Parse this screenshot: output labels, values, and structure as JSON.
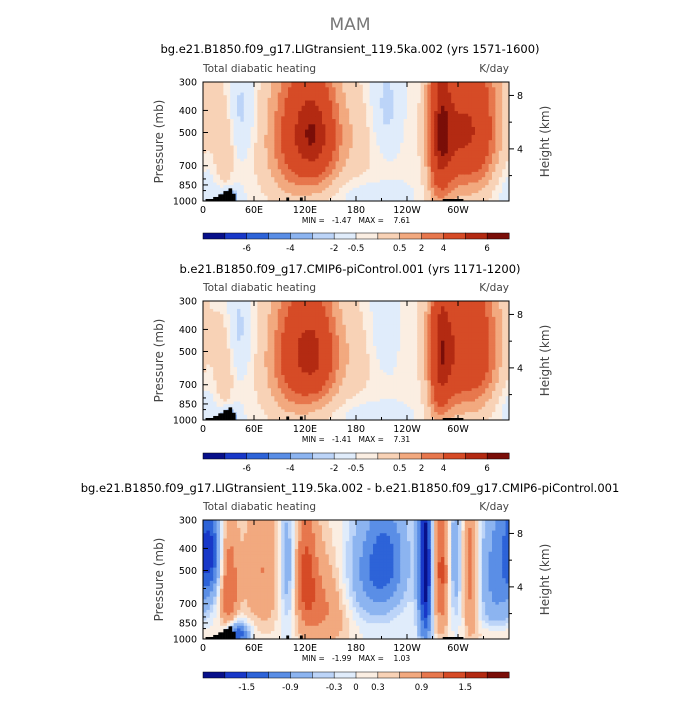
{
  "page": {
    "season": "MAM"
  },
  "colors": {
    "scale": [
      "#08108a",
      "#1838c8",
      "#2d63d8",
      "#5a8ee6",
      "#8cb4f0",
      "#bcd4f8",
      "#e0ecfb",
      "#fbeee2",
      "#f8d2b6",
      "#f2a97f",
      "#e7774d",
      "#d64b26",
      "#b32a12",
      "#7a0e08"
    ],
    "terrain": "#000000",
    "frame": "#000000"
  },
  "chart_data": [
    {
      "type": "heatmap",
      "title": "bg.e21.B1850.f09_g17.LIGtransient_119.5ka.002 (yrs 1571-1600)",
      "left_string": "Total diabatic heating",
      "units": "K/day",
      "ylabel": "Pressure (mb)",
      "y2label": "Height (km)",
      "x_ticks": [
        "0",
        "60E",
        "120E",
        "180",
        "120W",
        "60W"
      ],
      "x_tick_values": [
        0,
        60,
        120,
        180,
        240,
        300
      ],
      "xlim": [
        0,
        360
      ],
      "y_ticks": [
        "300",
        "400",
        "500",
        "700",
        "850",
        "1000"
      ],
      "y_tick_values": [
        300,
        400,
        500,
        700,
        850,
        1000
      ],
      "ylim": [
        1000,
        300
      ],
      "y2_ticks": [
        "8",
        "4"
      ],
      "y2_tick_values": [
        8,
        4
      ],
      "minmax": "MIN =   -1.47   MAX =    7.61",
      "min": -1.47,
      "max": 7.61,
      "colorbar_labels": [
        "-6",
        "-4",
        "-2",
        "-0.5",
        "0.5",
        "2",
        "4",
        "6"
      ],
      "features": [
        {
          "lon": 5,
          "p": 420,
          "sx": 12,
          "sy": 170,
          "a": 0.5
        },
        {
          "lon": 25,
          "p": 600,
          "sx": 8,
          "sy": 200,
          "a": 1.5
        },
        {
          "lon": 30,
          "p": 960,
          "sx": 8,
          "sy": 60,
          "a": -2.0
        },
        {
          "lon": 45,
          "p": 400,
          "sx": 12,
          "sy": 150,
          "a": -1.0
        },
        {
          "lon": 95,
          "p": 550,
          "sx": 22,
          "sy": 280,
          "a": 2.0
        },
        {
          "lon": 120,
          "p": 500,
          "sx": 20,
          "sy": 260,
          "a": 4.0
        },
        {
          "lon": 140,
          "p": 520,
          "sx": 16,
          "sy": 220,
          "a": 2.8
        },
        {
          "lon": 175,
          "p": 520,
          "sx": 25,
          "sy": 200,
          "a": 1.2
        },
        {
          "lon": 200,
          "p": 930,
          "sx": 25,
          "sy": 70,
          "a": -0.6
        },
        {
          "lon": 215,
          "p": 400,
          "sx": 15,
          "sy": 150,
          "a": -1.2
        },
        {
          "lon": 240,
          "p": 450,
          "sx": 12,
          "sy": 200,
          "a": 0.3
        },
        {
          "lon": 278,
          "p": 520,
          "sx": 10,
          "sy": 350,
          "a": 4.5
        },
        {
          "lon": 300,
          "p": 500,
          "sx": 18,
          "sy": 280,
          "a": 4.8
        },
        {
          "lon": 330,
          "p": 500,
          "sx": 16,
          "sy": 300,
          "a": 3.5
        },
        {
          "lon": 345,
          "p": 850,
          "sx": 25,
          "sy": 160,
          "a": -0.7
        }
      ],
      "base": 0.5
    },
    {
      "type": "heatmap",
      "title": "b.e21.B1850.f09_g17.CMIP6-piControl.001 (yrs 1171-1200)",
      "left_string": "Total diabatic heating",
      "units": "K/day",
      "ylabel": "Pressure (mb)",
      "y2label": "Height (km)",
      "x_ticks": [
        "0",
        "60E",
        "120E",
        "180",
        "120W",
        "60W"
      ],
      "x_tick_values": [
        0,
        60,
        120,
        180,
        240,
        300
      ],
      "xlim": [
        0,
        360
      ],
      "y_ticks": [
        "300",
        "400",
        "500",
        "700",
        "850",
        "1000"
      ],
      "y_tick_values": [
        300,
        400,
        500,
        700,
        850,
        1000
      ],
      "ylim": [
        1000,
        300
      ],
      "y2_ticks": [
        "8",
        "4"
      ],
      "y2_tick_values": [
        8,
        4
      ],
      "minmax": "MIN =   -1.41   MAX =    7.31",
      "min": -1.41,
      "max": 7.31,
      "colorbar_labels": [
        "-6",
        "-4",
        "-2",
        "-0.5",
        "0.5",
        "2",
        "4",
        "6"
      ],
      "features": [
        {
          "lon": 5,
          "p": 420,
          "sx": 12,
          "sy": 170,
          "a": 0.4
        },
        {
          "lon": 25,
          "p": 600,
          "sx": 8,
          "sy": 200,
          "a": 1.4
        },
        {
          "lon": 30,
          "p": 960,
          "sx": 8,
          "sy": 60,
          "a": -1.9
        },
        {
          "lon": 42,
          "p": 400,
          "sx": 12,
          "sy": 150,
          "a": -1.0
        },
        {
          "lon": 95,
          "p": 550,
          "sx": 22,
          "sy": 280,
          "a": 1.9
        },
        {
          "lon": 118,
          "p": 500,
          "sx": 20,
          "sy": 260,
          "a": 3.8
        },
        {
          "lon": 140,
          "p": 520,
          "sx": 16,
          "sy": 220,
          "a": 2.6
        },
        {
          "lon": 175,
          "p": 520,
          "sx": 25,
          "sy": 200,
          "a": 1.0
        },
        {
          "lon": 200,
          "p": 930,
          "sx": 25,
          "sy": 70,
          "a": -0.5
        },
        {
          "lon": 215,
          "p": 400,
          "sx": 15,
          "sy": 150,
          "a": -0.9
        },
        {
          "lon": 240,
          "p": 450,
          "sx": 12,
          "sy": 200,
          "a": 0.5
        },
        {
          "lon": 278,
          "p": 520,
          "sx": 10,
          "sy": 350,
          "a": 4.2
        },
        {
          "lon": 300,
          "p": 500,
          "sx": 18,
          "sy": 280,
          "a": 4.5
        },
        {
          "lon": 330,
          "p": 500,
          "sx": 16,
          "sy": 300,
          "a": 3.3
        },
        {
          "lon": 345,
          "p": 850,
          "sx": 25,
          "sy": 160,
          "a": -0.6
        }
      ],
      "base": 0.5
    },
    {
      "type": "heatmap",
      "title": "bg.e21.B1850.f09_g17.LIGtransient_119.5ka.002 - b.e21.B1850.f09_g17.CMIP6-piControl.001",
      "left_string": "Total diabatic heating",
      "units": "K/day",
      "ylabel": "Pressure (mb)",
      "y2label": "Height (km)",
      "x_ticks": [
        "0",
        "60E",
        "120E",
        "180",
        "120W",
        "60W"
      ],
      "x_tick_values": [
        0,
        60,
        120,
        180,
        240,
        300
      ],
      "xlim": [
        0,
        360
      ],
      "y_ticks": [
        "300",
        "400",
        "500",
        "700",
        "850",
        "1000"
      ],
      "y_tick_values": [
        300,
        400,
        500,
        700,
        850,
        1000
      ],
      "ylim": [
        1000,
        300
      ],
      "y2_ticks": [
        "8",
        "4"
      ],
      "y2_tick_values": [
        8,
        4
      ],
      "minmax": "MIN =   -1.99   MAX =    1.03",
      "min": -1.99,
      "max": 1.03,
      "colorbar_labels": [
        "-1.5",
        "-0.9",
        "-0.3",
        "0",
        "0.3",
        "0.9",
        "1.5"
      ],
      "features": [
        {
          "lon": 8,
          "p": 420,
          "sx": 10,
          "sy": 150,
          "a": -1.2
        },
        {
          "lon": 30,
          "p": 600,
          "sx": 8,
          "sy": 250,
          "a": 0.9
        },
        {
          "lon": 40,
          "p": 950,
          "sx": 10,
          "sy": 80,
          "a": -1.3
        },
        {
          "lon": 70,
          "p": 500,
          "sx": 18,
          "sy": 280,
          "a": 0.6
        },
        {
          "lon": 100,
          "p": 500,
          "sx": 8,
          "sy": 260,
          "a": -0.7
        },
        {
          "lon": 120,
          "p": 500,
          "sx": 10,
          "sy": 260,
          "a": 0.8
        },
        {
          "lon": 145,
          "p": 700,
          "sx": 22,
          "sy": 260,
          "a": 0.7
        },
        {
          "lon": 185,
          "p": 550,
          "sx": 25,
          "sy": 200,
          "a": -0.5
        },
        {
          "lon": 215,
          "p": 450,
          "sx": 18,
          "sy": 180,
          "a": -0.9
        },
        {
          "lon": 262,
          "p": 500,
          "sx": 6,
          "sy": 350,
          "a": -1.8
        },
        {
          "lon": 280,
          "p": 500,
          "sx": 8,
          "sy": 300,
          "a": 1.0
        },
        {
          "lon": 296,
          "p": 450,
          "sx": 6,
          "sy": 250,
          "a": -0.6
        },
        {
          "lon": 315,
          "p": 500,
          "sx": 7,
          "sy": 300,
          "a": 0.8
        },
        {
          "lon": 345,
          "p": 520,
          "sx": 15,
          "sy": 300,
          "a": -0.7
        },
        {
          "lon": 345,
          "p": 950,
          "sx": 20,
          "sy": 80,
          "a": 0.3
        }
      ],
      "base": 0.0
    }
  ]
}
